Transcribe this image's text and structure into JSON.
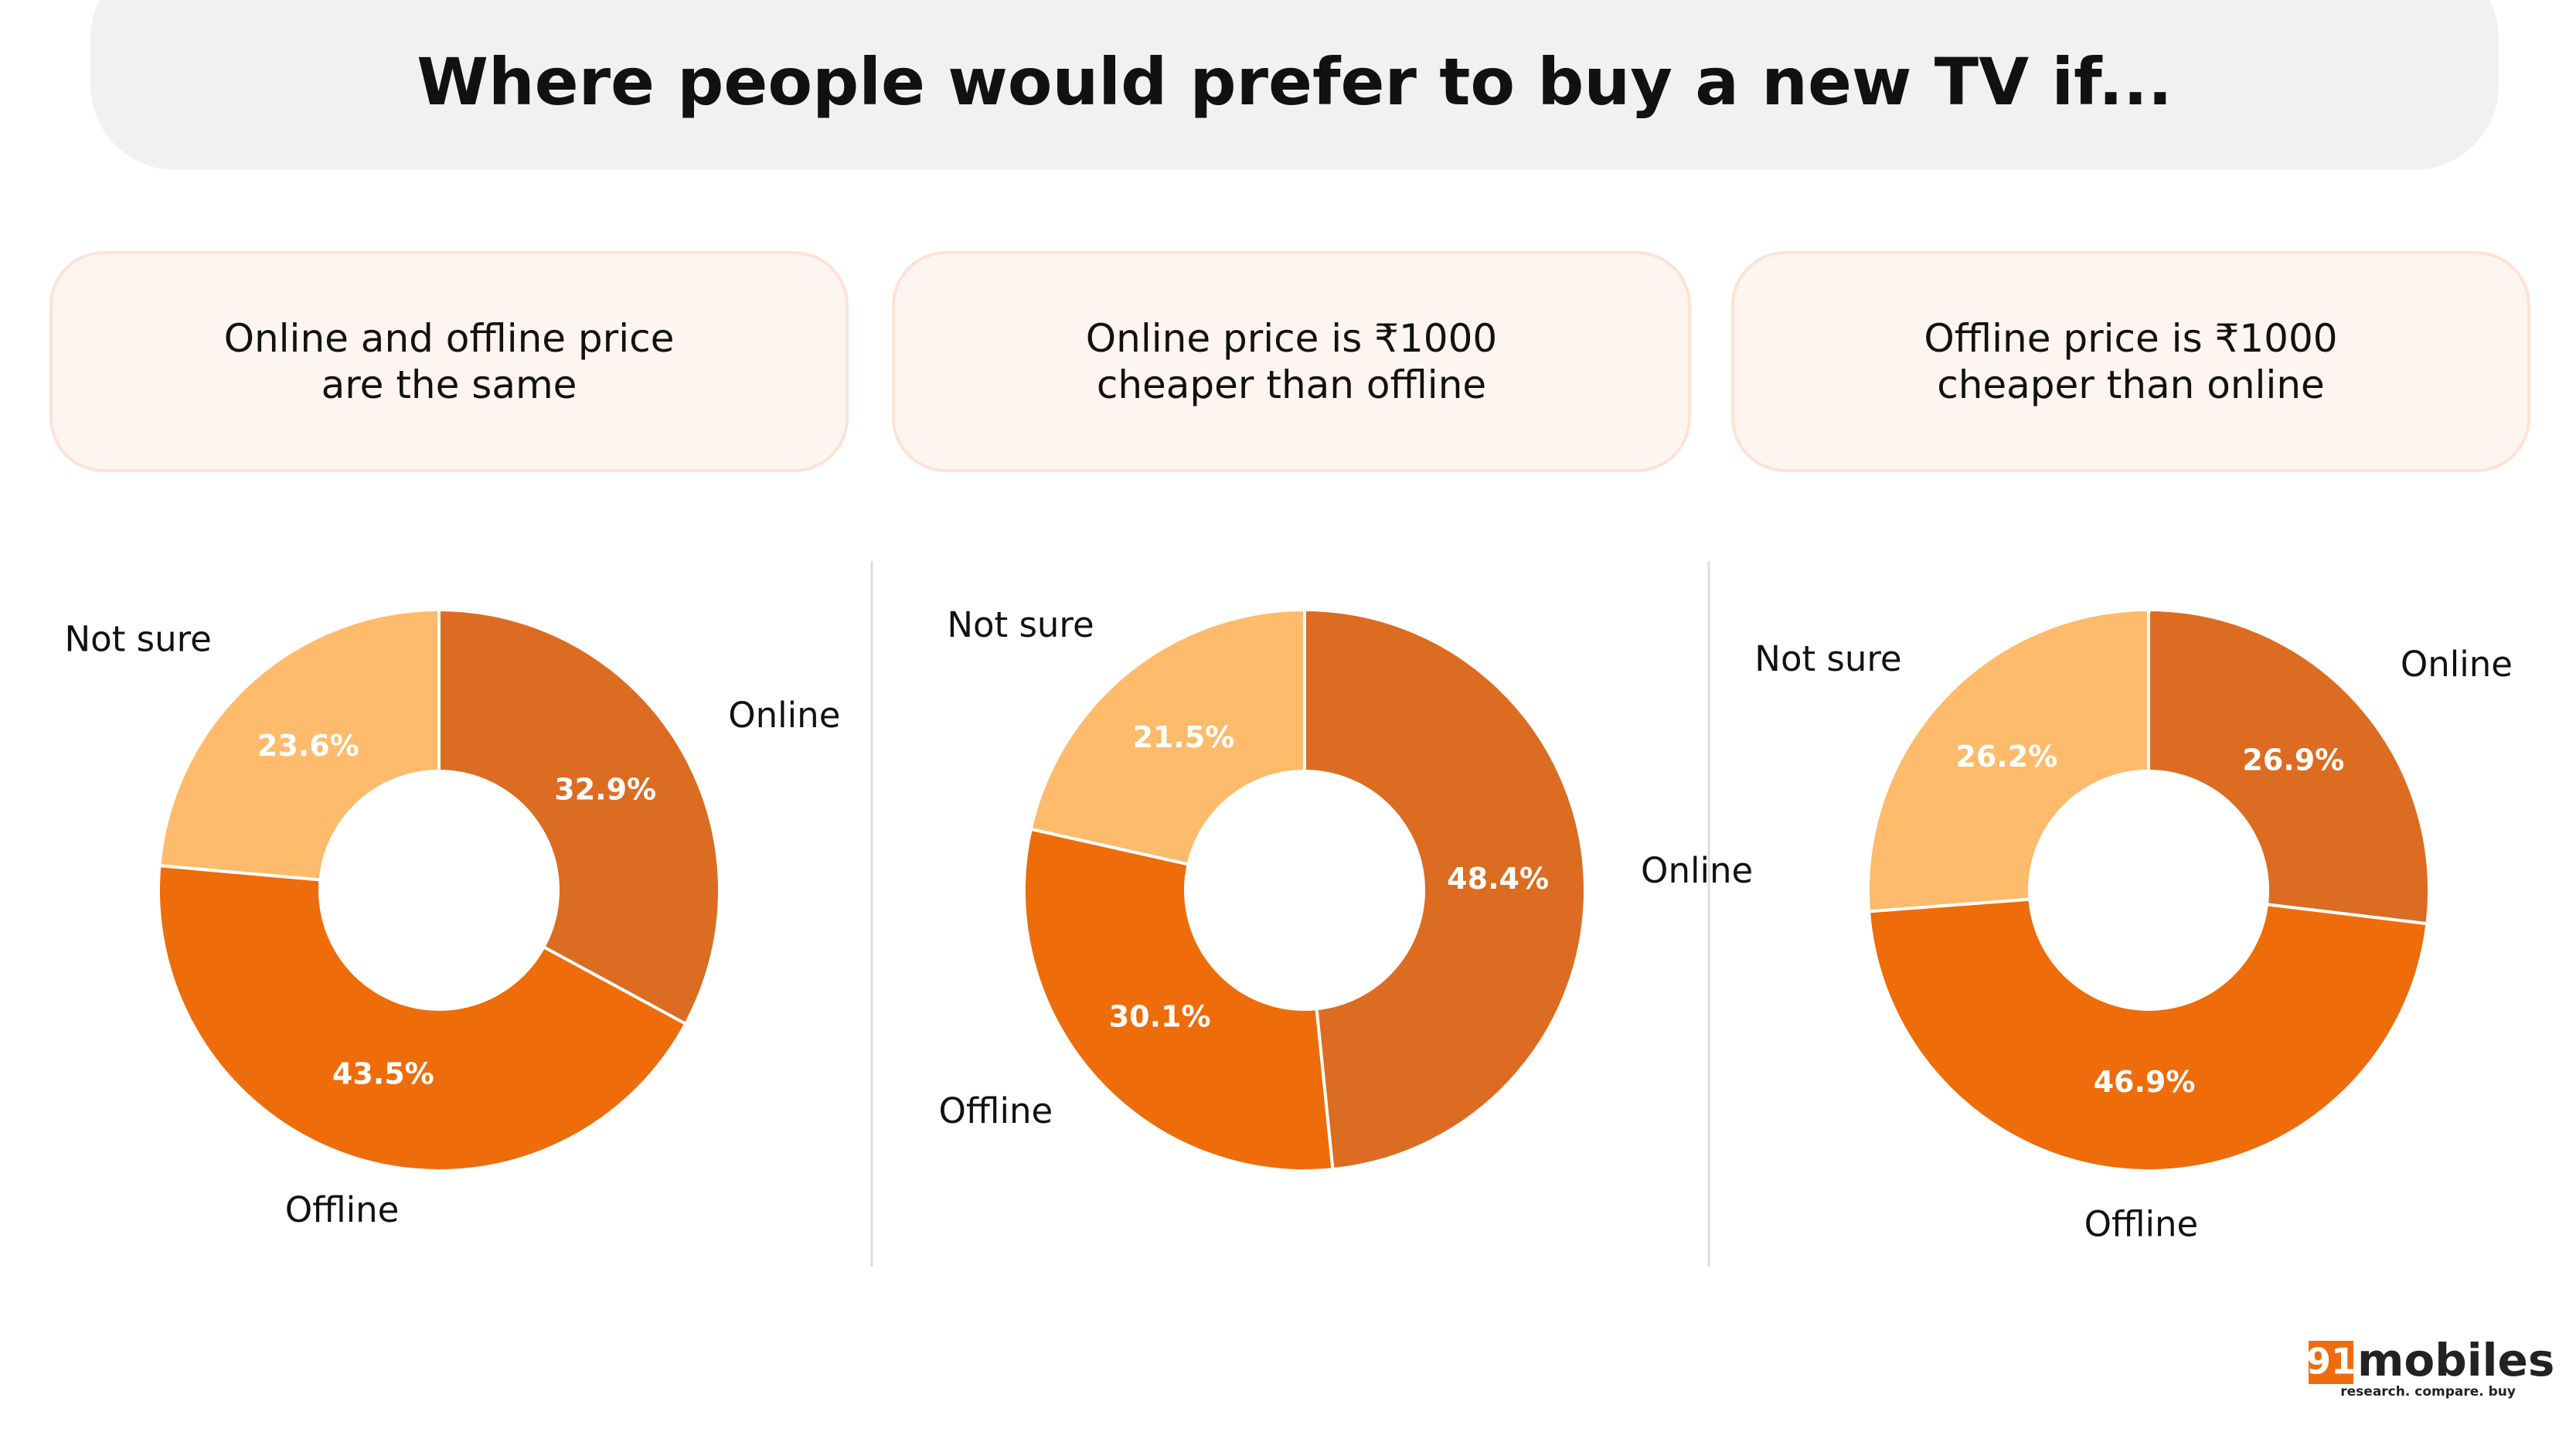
{
  "title": "Where people would prefer to buy a new TV if...",
  "logo": {
    "number": "91",
    "name": "mobiles",
    "tagline": "research. compare. buy"
  },
  "chart_data": [
    {
      "type": "donut",
      "title": "Online and offline price\nare the same",
      "categories": [
        "Online",
        "Offline",
        "Not sure"
      ],
      "values": [
        32.9,
        43.5,
        23.6
      ],
      "value_labels": [
        "32.9%",
        "43.5%",
        "23.6%"
      ],
      "colors": [
        "#dc6c22",
        "#ee6c0a",
        "#fdbb6b"
      ]
    },
    {
      "type": "donut",
      "title": "Online price is ₹1000\ncheaper than offline",
      "categories": [
        "Online",
        "Offline",
        "Not sure"
      ],
      "values": [
        48.4,
        30.1,
        21.5
      ],
      "value_labels": [
        "48.4%",
        "30.1%",
        "21.5%"
      ],
      "colors": [
        "#dc6c22",
        "#ee6c0a",
        "#fdbb6b"
      ]
    },
    {
      "type": "donut",
      "title": "Offline price is ₹1000\ncheaper than online",
      "categories": [
        "Online",
        "Offline",
        "Not sure"
      ],
      "values": [
        26.9,
        46.9,
        26.2
      ],
      "value_labels": [
        "26.9%",
        "46.9%",
        "26.2%"
      ],
      "colors": [
        "#dc6c22",
        "#ee6c0a",
        "#fdbb6b"
      ]
    }
  ]
}
